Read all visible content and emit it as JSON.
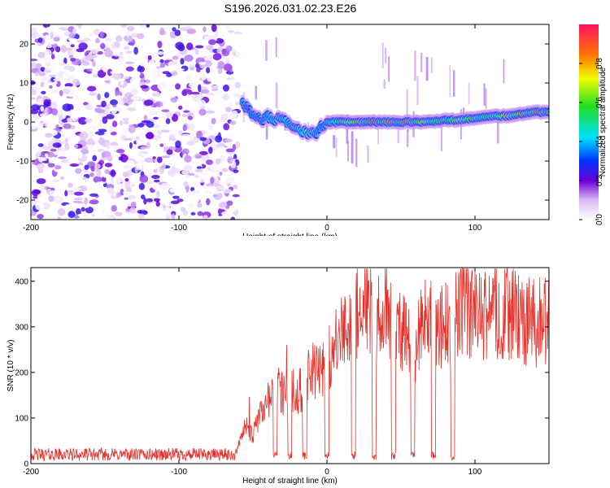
{
  "title": "S196.2026.031.02.23.E26",
  "chart_data": [
    {
      "type": "heatmap",
      "title": "S196.2026.031.02.23.E26",
      "xlabel": "Height of straight line (km)",
      "ylabel": "Frequency (Hz)",
      "xlim": [
        -200,
        150
      ],
      "ylim": [
        -25,
        25
      ],
      "xticks": [
        -200,
        -100,
        0,
        100
      ],
      "yticks": [
        -20,
        -10,
        0,
        10,
        20
      ],
      "colorbar": {
        "label": "Normalized spectral amplitude",
        "range": [
          0,
          1
        ],
        "ticks": [
          0.0,
          0.2,
          0.4,
          0.6,
          0.8
        ],
        "tick_labels": [
          "0.0",
          "0.2",
          "0.4",
          "0.6",
          "0.8"
        ]
      },
      "noise_region_x": [
        -200,
        -60
      ],
      "ridge": {
        "x": [
          -57,
          -52,
          -45,
          -40,
          -35,
          -30,
          -25,
          -20,
          -15,
          -10,
          -7,
          -4,
          0,
          5,
          10,
          20,
          30,
          40,
          50,
          60,
          70,
          80,
          90,
          100,
          110,
          120,
          130,
          140,
          150
        ],
        "freq": [
          5,
          2.5,
          0.5,
          1.5,
          0.5,
          1.5,
          -1,
          -1.5,
          -2.5,
          -3,
          -3.5,
          -1,
          0,
          0,
          0,
          0,
          0,
          0,
          0,
          0,
          0,
          0.5,
          0.5,
          1,
          1.5,
          1.5,
          2,
          2.5,
          2.5
        ],
        "amplitude": [
          0.35,
          0.25,
          0.3,
          0.35,
          0.4,
          0.4,
          0.35,
          0.4,
          0.45,
          0.45,
          0.35,
          0.3,
          0.35,
          0.45,
          0.6,
          0.8,
          0.9,
          0.85,
          0.9,
          0.85,
          0.6,
          0.55,
          0.7,
          0.6,
          0.55,
          0.75,
          0.8,
          0.85,
          0.9
        ]
      }
    },
    {
      "type": "line",
      "title": "",
      "xlabel": "Height of straight line (km)",
      "ylabel": "SNR (10 * v/v)",
      "xlim": [
        -200,
        150
      ],
      "ylim": [
        0,
        430
      ],
      "xticks": [
        -200,
        -100,
        0,
        100
      ],
      "yticks": [
        0,
        100,
        200,
        300,
        400
      ],
      "series": [
        {
          "name": "SNR",
          "color": "#e8302b",
          "x": [
            -200,
            -180,
            -160,
            -140,
            -120,
            -100,
            -80,
            -62,
            -55,
            -50,
            -45,
            -40,
            -35,
            -30,
            -25,
            -20,
            -15,
            -10,
            -5,
            0,
            5,
            10,
            15,
            20,
            25,
            30,
            35,
            40,
            45,
            50,
            55,
            60,
            65,
            70,
            75,
            80,
            85,
            90,
            95,
            100,
            110,
            120,
            130,
            140,
            150
          ],
          "values": [
            20,
            20,
            20,
            20,
            20,
            20,
            20,
            20,
            80,
            60,
            110,
            140,
            180,
            150,
            170,
            150,
            180,
            200,
            200,
            230,
            250,
            280,
            310,
            320,
            350,
            340,
            310,
            330,
            310,
            300,
            260,
            250,
            330,
            320,
            310,
            300,
            300,
            350,
            330,
            320,
            330,
            330,
            320,
            310,
            310
          ],
          "dropouts_x": [
            -35,
            -25,
            -15,
            0,
            18,
            32,
            45,
            58,
            72,
            85
          ]
        }
      ]
    }
  ]
}
